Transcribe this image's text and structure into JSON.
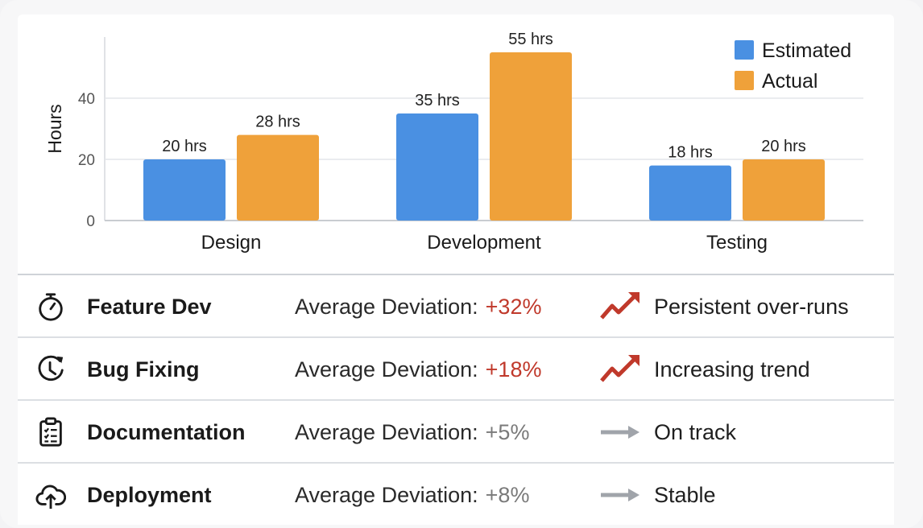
{
  "colors": {
    "estimated": "#4a90e2",
    "actual": "#efa13a",
    "deviation_high": "#c0392b",
    "deviation_low": "#7a7a7a",
    "trend_up": "#c0392b",
    "trend_flat": "#a0a4aa"
  },
  "chart_data": {
    "type": "bar",
    "ylabel": "Hours",
    "xlabel": "",
    "ylim": [
      0,
      60
    ],
    "yticks": [
      0,
      20,
      40
    ],
    "grid": true,
    "legend_position": "top-right",
    "categories": [
      "Design",
      "Development",
      "Testing"
    ],
    "series": [
      {
        "name": "Estimated",
        "values": [
          20,
          35,
          18
        ],
        "labels": [
          "20 hrs",
          "35 hrs",
          "18 hrs"
        ]
      },
      {
        "name": "Actual",
        "values": [
          28,
          55,
          20
        ],
        "labels": [
          "28 hrs",
          "55 hrs",
          "20 hrs"
        ]
      }
    ]
  },
  "summary": {
    "deviation_label": "Average Deviation:",
    "rows": [
      {
        "icon": "stopwatch-icon",
        "name": "Feature Dev",
        "deviation": "+32%",
        "severity": "high",
        "trend": "trend-up-icon",
        "status": "Persistent over-runs"
      },
      {
        "icon": "clock-history-icon",
        "name": "Bug Fixing",
        "deviation": "+18%",
        "severity": "high",
        "trend": "trend-up-icon",
        "status": "Increasing trend"
      },
      {
        "icon": "clipboard-checklist-icon",
        "name": "Documentation",
        "deviation": "+5%",
        "severity": "low",
        "trend": "arrow-right-icon",
        "status": "On track"
      },
      {
        "icon": "cloud-upload-icon",
        "name": "Deployment",
        "deviation": "+8%",
        "severity": "low",
        "trend": "arrow-right-icon",
        "status": "Stable"
      }
    ]
  }
}
